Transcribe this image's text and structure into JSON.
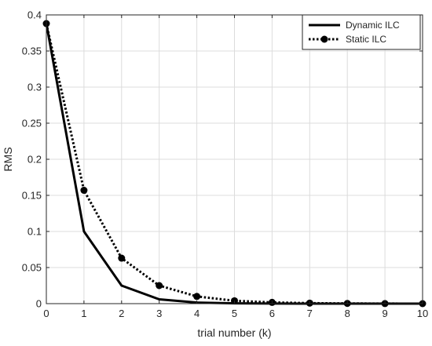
{
  "chart_data": {
    "type": "line",
    "title": "",
    "xlabel": "trial number (k)",
    "ylabel": "RMS",
    "xlim": [
      0,
      10
    ],
    "ylim": [
      0,
      0.4
    ],
    "x_ticks": [
      0,
      1,
      2,
      3,
      4,
      5,
      6,
      7,
      8,
      9,
      10
    ],
    "y_ticks": [
      0,
      0.05,
      0.1,
      0.15,
      0.2,
      0.25,
      0.3,
      0.35,
      0.4
    ],
    "y_tick_labels": [
      "0",
      "0.05",
      "0.1",
      "0.15",
      "0.2",
      "0.25",
      "0.3",
      "0.35",
      "0.4"
    ],
    "grid": true,
    "legend_position": "top-right",
    "x": [
      0,
      1,
      2,
      3,
      4,
      5,
      6,
      7,
      8,
      9,
      10
    ],
    "series": [
      {
        "name": "Dynamic ILC",
        "style": "solid",
        "marker": "none",
        "color": "#000000",
        "values": [
          0.388,
          0.1,
          0.025,
          0.006,
          0.0015,
          0.0004,
          0.0001,
          0.0,
          0.0,
          0.0,
          0.0
        ]
      },
      {
        "name": "Static ILC",
        "style": "dotted",
        "marker": "circle",
        "color": "#000000",
        "values": [
          0.388,
          0.157,
          0.063,
          0.025,
          0.01,
          0.004,
          0.0017,
          0.0007,
          0.0003,
          0.0001,
          0.0
        ]
      }
    ]
  }
}
